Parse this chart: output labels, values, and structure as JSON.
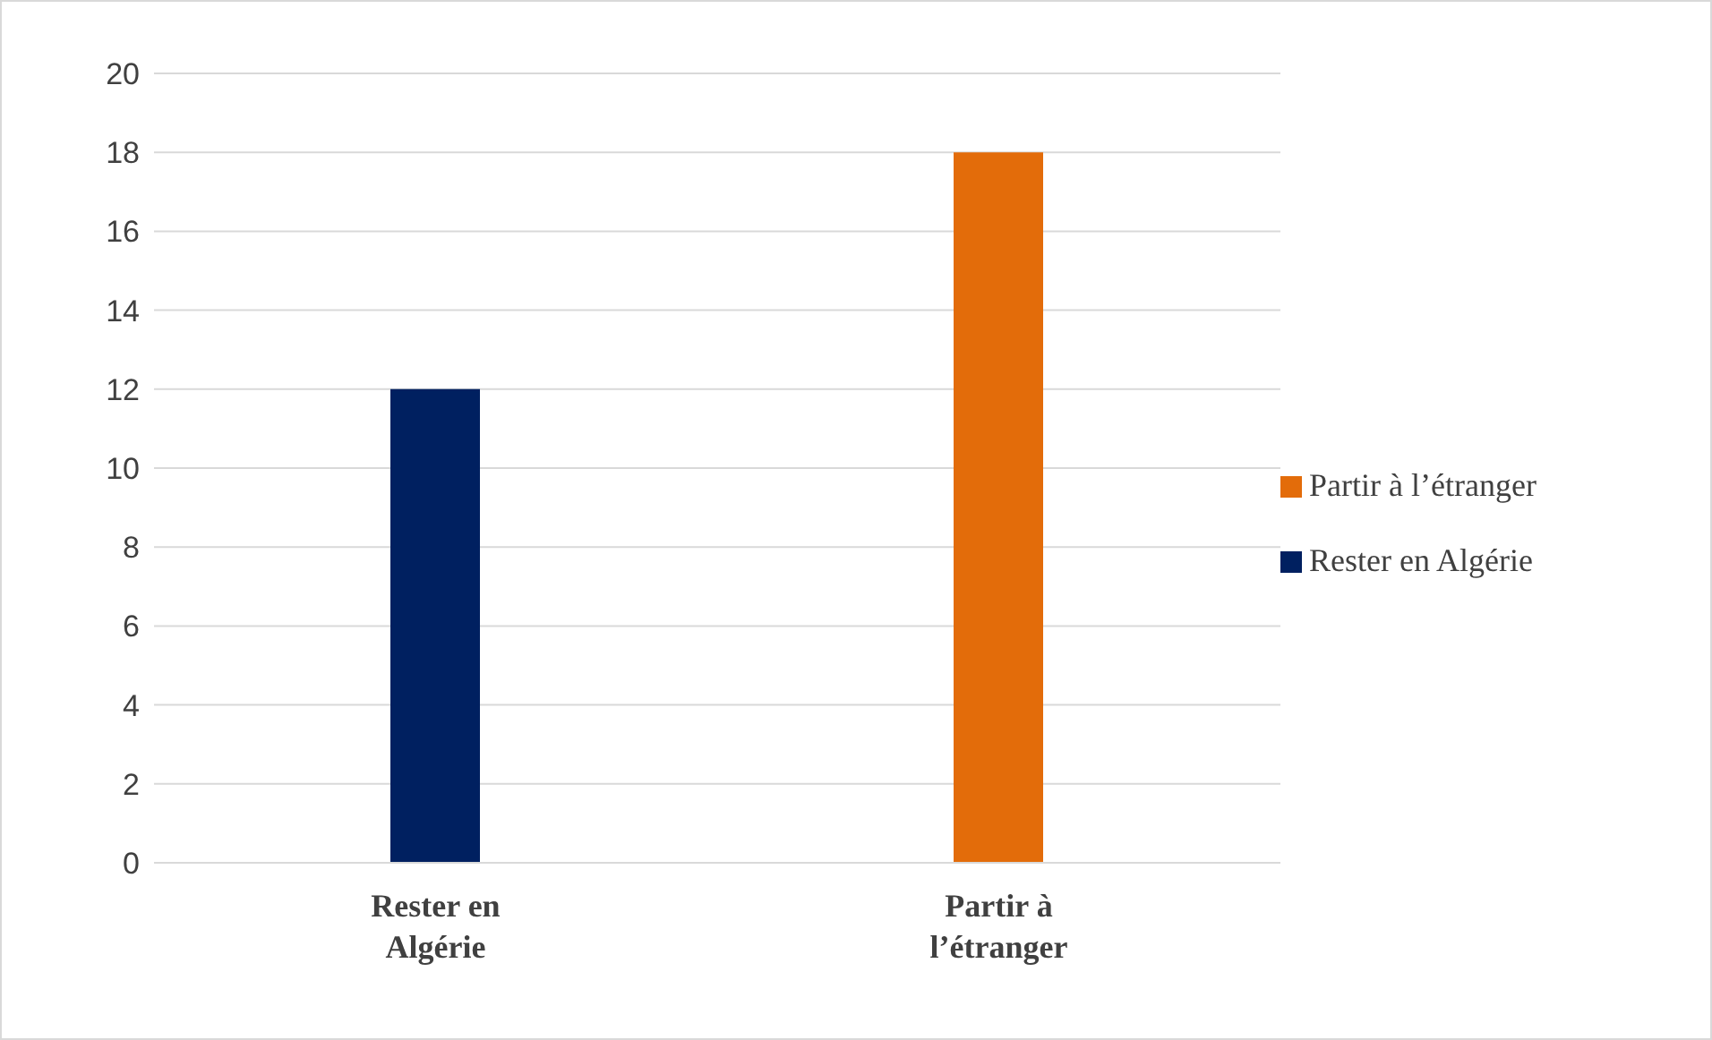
{
  "chart_data": {
    "type": "bar",
    "categories": [
      "Rester en Algérie",
      "Partir à l’étranger"
    ],
    "series": [
      {
        "name": "Rester en Algérie",
        "color": "#002060",
        "values": [
          12,
          null
        ]
      },
      {
        "name": "Partir à l’étranger",
        "color": "#e36c0a",
        "values": [
          null,
          18
        ]
      }
    ],
    "ylim": [
      0,
      20
    ],
    "yticks": [
      0,
      2,
      4,
      6,
      8,
      10,
      12,
      14,
      16,
      18,
      20
    ],
    "grid": "y",
    "legend": "right"
  }
}
